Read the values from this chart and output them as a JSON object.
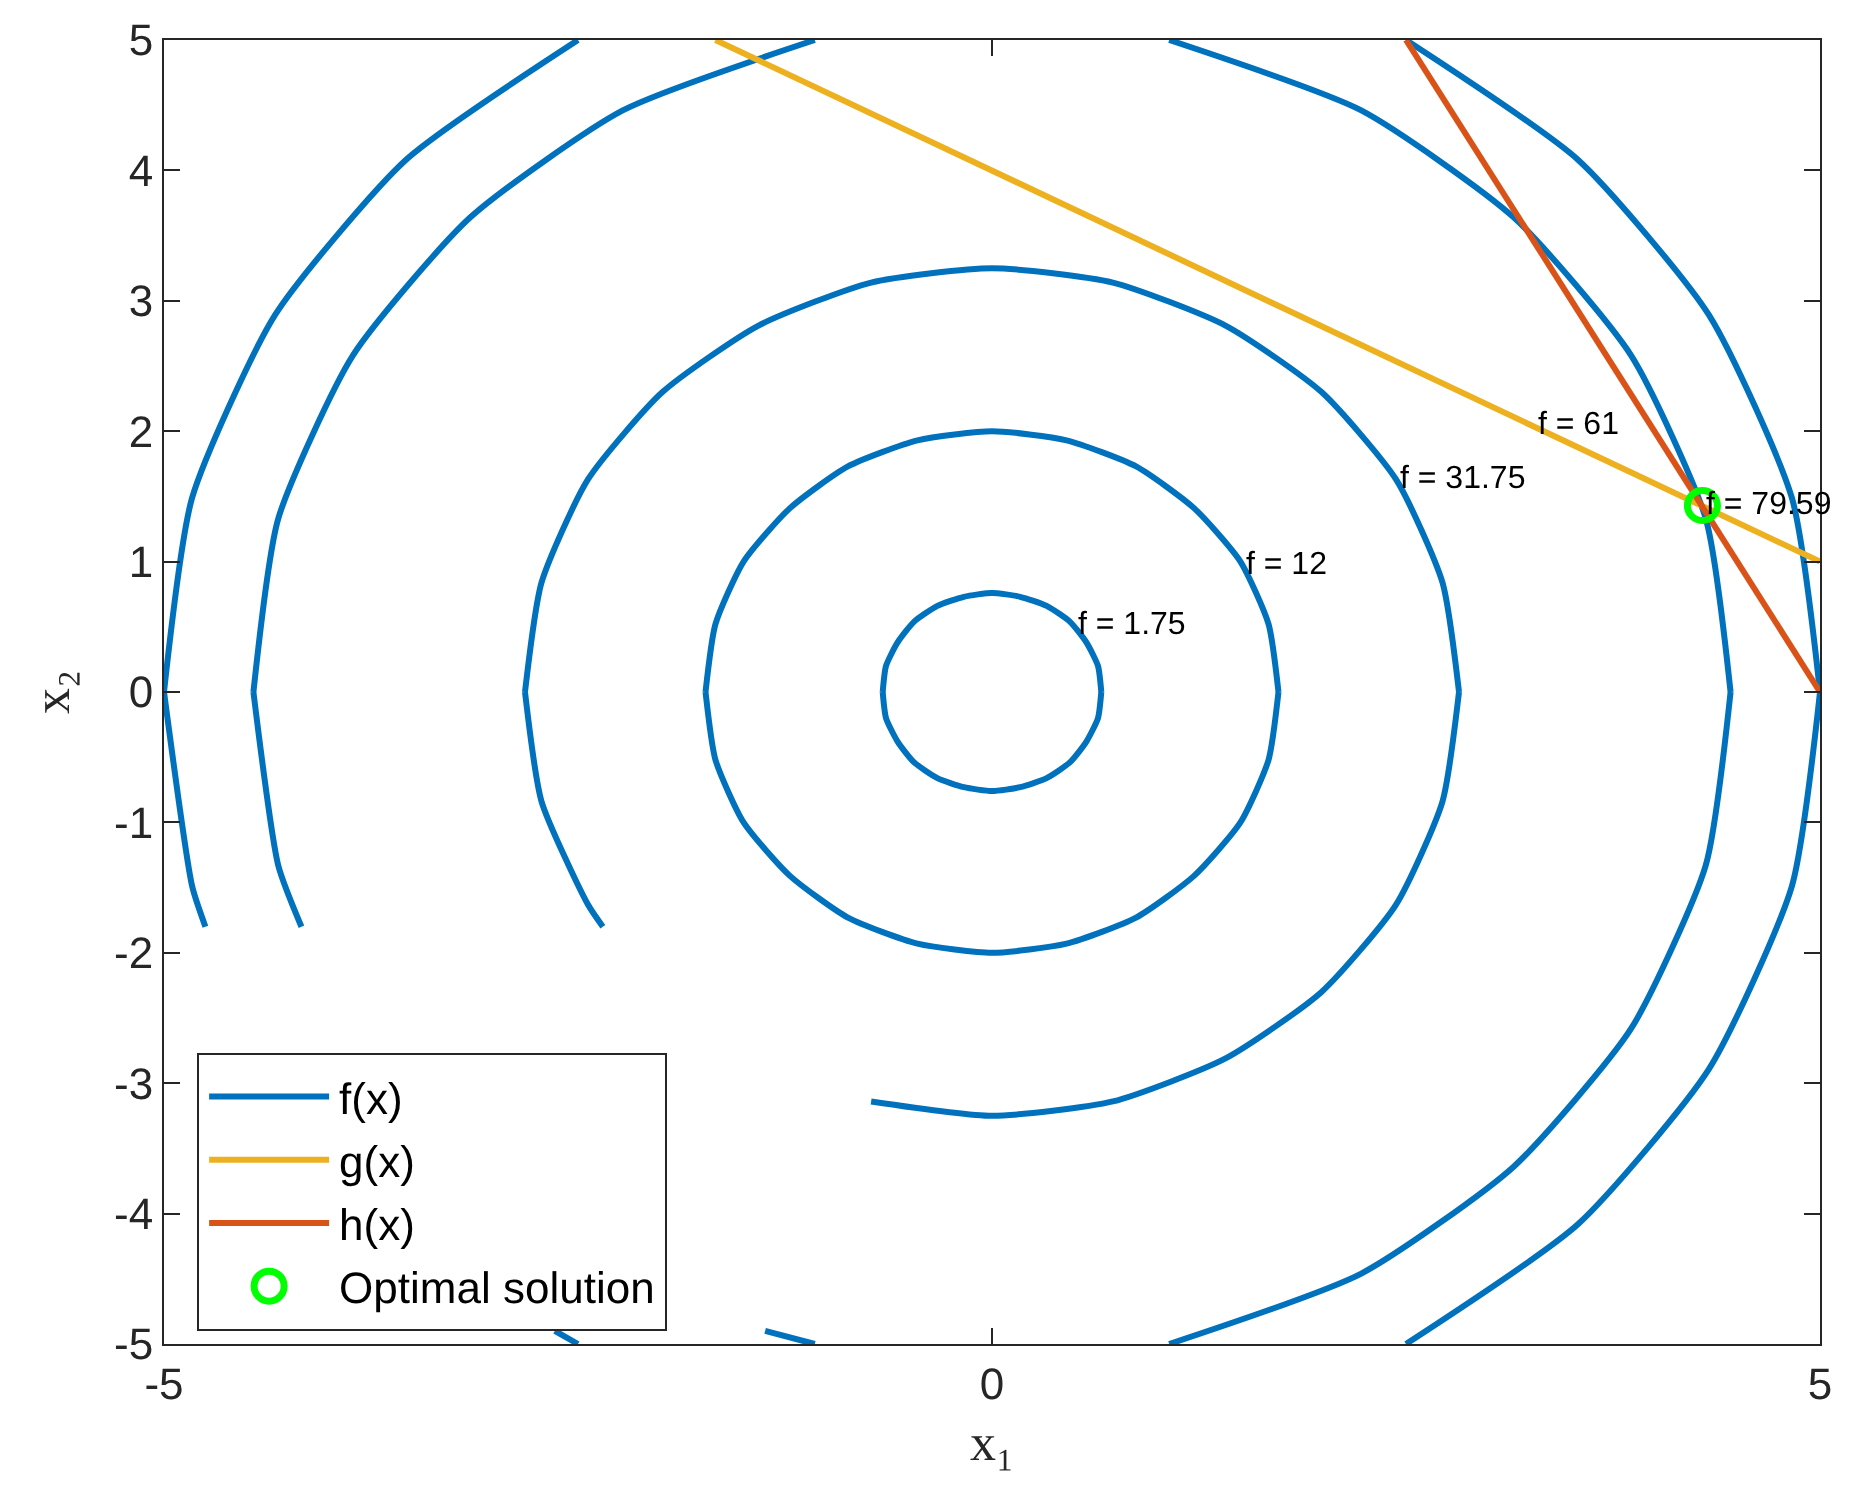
{
  "chart_data": {
    "type": "line",
    "xlabel": "x₁",
    "ylabel": "x₂",
    "xlim": [
      -5,
      5
    ],
    "ylim": [
      -5,
      5
    ],
    "xticks": [
      -5,
      0,
      5
    ],
    "yticks": [
      -5,
      -4,
      -3,
      -2,
      -1,
      0,
      1,
      2,
      3,
      4,
      5
    ],
    "grid": false,
    "legend": "bottom left",
    "line_style": "solid",
    "series": [
      {
        "name": "f(x)",
        "type": "line",
        "marker": "none",
        "color": "#0072bd",
        "x": [
          -0.66,
          -0.64,
          -0.57,
          -0.47,
          -0.33,
          -0.17,
          0,
          0.17,
          0.33,
          0.47,
          0.57,
          0.64,
          0.66,
          null,
          -0.66,
          -0.64,
          -0.57,
          -0.47,
          -0.33,
          -0.17,
          0,
          0.17,
          0.33,
          0.47,
          0.57,
          0.64,
          0.66,
          null,
          -1.73,
          -1.67,
          -1.5,
          -1.22,
          -0.87,
          -0.45,
          0,
          0.45,
          0.87,
          1.22,
          1.5,
          1.67,
          1.73,
          null,
          -1.73,
          -1.67,
          -1.5,
          -1.22,
          -0.87,
          -0.45,
          0,
          0.45,
          0.87,
          1.22,
          1.5,
          1.67,
          1.73,
          null,
          -2.82,
          -2.72,
          -2.44,
          -1.99,
          -1.41,
          -0.73,
          0,
          0.73,
          1.41,
          1.99,
          2.44,
          2.72,
          2.82,
          null,
          -2.82,
          -2.72,
          -2.44,
          -2.35,
          null,
          -0.73,
          0,
          0.73,
          1.41,
          1.99,
          2.44,
          2.72,
          2.82,
          null,
          1.07,
          2.23,
          3.15,
          3.86,
          4.31,
          4.46,
          null,
          1.07,
          2.23,
          3.15,
          3.86,
          4.31,
          4.46,
          null,
          -4.46,
          -4.31,
          -3.86,
          -3.15,
          -2.23,
          -1.07,
          null,
          -4.46,
          -4.31,
          -4.17,
          null,
          -1.37,
          -1.07,
          null,
          2.5,
          3.54,
          4.33,
          4.83,
          5,
          null,
          2.5,
          3.54,
          4.33,
          4.83,
          5,
          null,
          -5,
          -4.83,
          -4.33,
          -3.54,
          -2.5,
          null,
          -5,
          -4.83,
          -4.75,
          null,
          -2.64,
          -2.5
        ],
        "values": [
          0,
          0.2,
          0.38,
          0.54,
          0.66,
          0.73,
          0.76,
          0.73,
          0.66,
          0.54,
          0.38,
          0.2,
          0,
          null,
          0,
          -0.2,
          -0.38,
          -0.54,
          -0.66,
          -0.73,
          -0.76,
          -0.73,
          -0.66,
          -0.54,
          -0.38,
          -0.2,
          0,
          null,
          0,
          0.52,
          1,
          1.41,
          1.73,
          1.93,
          2,
          1.93,
          1.73,
          1.41,
          1,
          0.52,
          0,
          null,
          0,
          -0.52,
          -1,
          -1.41,
          -1.73,
          -1.93,
          -2,
          -1.93,
          -1.73,
          -1.41,
          -1,
          -0.52,
          0,
          null,
          0,
          0.84,
          1.63,
          2.3,
          2.81,
          3.14,
          3.25,
          3.14,
          2.81,
          2.3,
          1.63,
          0.84,
          0,
          null,
          0,
          -0.84,
          -1.63,
          -1.8,
          null,
          -3.14,
          -3.25,
          -3.14,
          -2.81,
          -2.3,
          -1.63,
          -0.84,
          0,
          null,
          5,
          4.46,
          3.64,
          2.58,
          1.33,
          0,
          null,
          -5,
          -4.46,
          -3.64,
          -2.58,
          -1.33,
          0,
          null,
          0,
          1.33,
          2.58,
          3.64,
          4.46,
          5,
          null,
          0,
          -1.33,
          -1.8,
          null,
          -4.9,
          -5,
          null,
          5,
          4.08,
          2.89,
          1.49,
          0,
          null,
          -5,
          -4.08,
          -2.89,
          -1.49,
          0,
          null,
          0,
          1.49,
          2.89,
          4.08,
          5,
          null,
          0,
          -1.49,
          -1.8,
          null,
          -4.9,
          -5
        ]
      },
      {
        "name": "g(x)",
        "type": "line",
        "marker": "none",
        "color": "#edb120",
        "x": [
          -1.67,
          5
        ],
        "values": [
          5,
          1
        ]
      },
      {
        "name": "h(x)",
        "type": "line",
        "marker": "none",
        "color": "#d95319",
        "x": [
          2.5,
          5
        ],
        "values": [
          5,
          0
        ]
      },
      {
        "name": "Optimal solution",
        "type": "scatter",
        "marker": "circle",
        "color": "#00ff00",
        "x": [
          4.29
        ],
        "values": [
          1.43
        ]
      }
    ],
    "annotations": [
      {
        "text": "f = 1.75",
        "x": 0.49,
        "y": 0.51
      },
      {
        "text": "f = 12",
        "x": 1.51,
        "y": 0.98
      },
      {
        "text": "f = 31.75",
        "x": 2.44,
        "y": 1.63
      },
      {
        "text": "f = 61",
        "x": 3.27,
        "y": 2.04
      },
      {
        "text": "f = 79.59",
        "x": 4.29,
        "y": 1.43
      }
    ]
  }
}
